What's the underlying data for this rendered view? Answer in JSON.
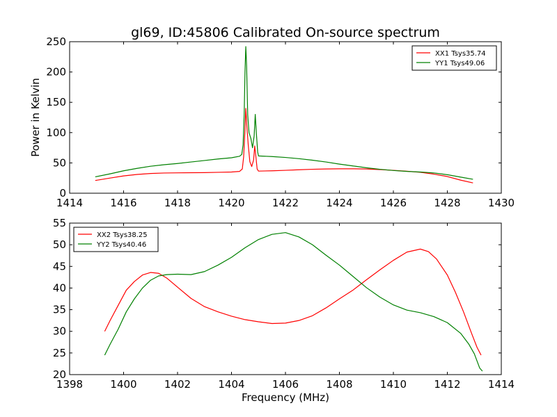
{
  "chart_data": [
    {
      "type": "line",
      "title": "gl69, ID:45806 Calibrated On-source spectrum",
      "xlabel": "",
      "ylabel": "Power in Kelvin",
      "xlim": [
        1414,
        1430
      ],
      "ylim": [
        0,
        250
      ],
      "xticks": [
        1414,
        1416,
        1418,
        1420,
        1422,
        1424,
        1426,
        1428,
        1430
      ],
      "yticks": [
        0,
        50,
        100,
        150,
        200,
        250
      ],
      "grid": false,
      "legend": "top-right",
      "series": [
        {
          "name": "XX1 Tsys35.74",
          "color": "#ff0000",
          "points": [
            [
              1414.95,
              21
            ],
            [
              1415.5,
              25
            ],
            [
              1416.0,
              28.5
            ],
            [
              1416.5,
              31
            ],
            [
              1417.0,
              32.5
            ],
            [
              1417.5,
              33.3
            ],
            [
              1418.0,
              33.6
            ],
            [
              1418.5,
              33.8
            ],
            [
              1419.0,
              34
            ],
            [
              1419.5,
              34.5
            ],
            [
              1420.0,
              35
            ],
            [
              1420.3,
              36
            ],
            [
              1420.4,
              40
            ],
            [
              1420.45,
              60
            ],
            [
              1420.5,
              105
            ],
            [
              1420.53,
              140
            ],
            [
              1420.57,
              110
            ],
            [
              1420.62,
              80
            ],
            [
              1420.68,
              52
            ],
            [
              1420.75,
              44
            ],
            [
              1420.82,
              55
            ],
            [
              1420.86,
              78
            ],
            [
              1420.9,
              62
            ],
            [
              1420.95,
              40
            ],
            [
              1421.0,
              36.5
            ],
            [
              1421.5,
              37
            ],
            [
              1422.0,
              37.8
            ],
            [
              1422.5,
              38.7
            ],
            [
              1423.0,
              39.5
            ],
            [
              1423.5,
              40
            ],
            [
              1424.0,
              40.3
            ],
            [
              1424.5,
              40.3
            ],
            [
              1425.0,
              40
            ],
            [
              1425.5,
              39
            ],
            [
              1426.0,
              37.8
            ],
            [
              1426.5,
              36.3
            ],
            [
              1427.0,
              34.5
            ],
            [
              1427.5,
              31.5
            ],
            [
              1428.0,
              27.5
            ],
            [
              1428.5,
              21.5
            ],
            [
              1428.95,
              17
            ]
          ]
        },
        {
          "name": "YY1 Tsys49.06",
          "color": "#008000",
          "points": [
            [
              1414.95,
              27
            ],
            [
              1415.5,
              32
            ],
            [
              1416.0,
              37
            ],
            [
              1416.5,
              41
            ],
            [
              1417.0,
              44.5
            ],
            [
              1417.5,
              47
            ],
            [
              1418.0,
              49
            ],
            [
              1418.5,
              51.5
            ],
            [
              1419.0,
              54
            ],
            [
              1419.5,
              56.5
            ],
            [
              1420.0,
              58.5
            ],
            [
              1420.3,
              61
            ],
            [
              1420.38,
              64
            ],
            [
              1420.43,
              80
            ],
            [
              1420.47,
              130
            ],
            [
              1420.5,
              200
            ],
            [
              1420.53,
              242
            ],
            [
              1420.56,
              210
            ],
            [
              1420.6,
              130
            ],
            [
              1420.65,
              100
            ],
            [
              1420.72,
              90
            ],
            [
              1420.78,
              75
            ],
            [
              1420.84,
              95
            ],
            [
              1420.88,
              130
            ],
            [
              1420.92,
              100
            ],
            [
              1420.97,
              68
            ],
            [
              1421.0,
              61.5
            ],
            [
              1421.5,
              60.5
            ],
            [
              1422.0,
              59
            ],
            [
              1422.5,
              57
            ],
            [
              1423.0,
              54.5
            ],
            [
              1423.5,
              51.5
            ],
            [
              1424.0,
              48
            ],
            [
              1424.5,
              45
            ],
            [
              1425.0,
              42
            ],
            [
              1425.5,
              39.5
            ],
            [
              1426.0,
              37.5
            ],
            [
              1426.5,
              36
            ],
            [
              1427.0,
              35
            ],
            [
              1427.5,
              33.5
            ],
            [
              1428.0,
              30.5
            ],
            [
              1428.5,
              26.5
            ],
            [
              1428.95,
              23
            ]
          ]
        }
      ]
    },
    {
      "type": "line",
      "title": "",
      "xlabel": "Frequency (MHz)",
      "ylabel": "",
      "xlim": [
        1398,
        1414
      ],
      "ylim": [
        20,
        55
      ],
      "xticks": [
        1398,
        1400,
        1402,
        1404,
        1406,
        1408,
        1410,
        1412,
        1414
      ],
      "yticks": [
        20,
        25,
        30,
        35,
        40,
        45,
        50,
        55
      ],
      "grid": false,
      "legend": "top-left",
      "series": [
        {
          "name": "XX2 Tsys38.25",
          "color": "#ff0000",
          "points": [
            [
              1399.3,
              30
            ],
            [
              1399.5,
              32.5
            ],
            [
              1399.8,
              36
            ],
            [
              1400.1,
              39.5
            ],
            [
              1400.4,
              41.5
            ],
            [
              1400.7,
              43
            ],
            [
              1401.0,
              43.6
            ],
            [
              1401.3,
              43.4
            ],
            [
              1401.6,
              42.3
            ],
            [
              1402.0,
              40.2
            ],
            [
              1402.5,
              37.6
            ],
            [
              1403.0,
              35.7
            ],
            [
              1403.5,
              34.5
            ],
            [
              1404.0,
              33.5
            ],
            [
              1404.5,
              32.7
            ],
            [
              1405.0,
              32.2
            ],
            [
              1405.5,
              31.8
            ],
            [
              1406.0,
              31.9
            ],
            [
              1406.5,
              32.5
            ],
            [
              1407.0,
              33.6
            ],
            [
              1407.5,
              35.4
            ],
            [
              1408.0,
              37.5
            ],
            [
              1408.5,
              39.5
            ],
            [
              1409.0,
              41.9
            ],
            [
              1409.5,
              44.2
            ],
            [
              1410.0,
              46.4
            ],
            [
              1410.5,
              48.3
            ],
            [
              1411.0,
              49
            ],
            [
              1411.3,
              48.4
            ],
            [
              1411.6,
              46.7
            ],
            [
              1412.0,
              43
            ],
            [
              1412.3,
              39
            ],
            [
              1412.6,
              34.5
            ],
            [
              1412.9,
              29.5
            ],
            [
              1413.1,
              26.3
            ],
            [
              1413.25,
              24.5
            ]
          ]
        },
        {
          "name": "YY2 Tsys40.46",
          "color": "#008000",
          "points": [
            [
              1399.3,
              24.5
            ],
            [
              1399.5,
              27
            ],
            [
              1399.8,
              30.5
            ],
            [
              1400.1,
              34.5
            ],
            [
              1400.4,
              37.5
            ],
            [
              1400.7,
              40
            ],
            [
              1401.0,
              41.8
            ],
            [
              1401.3,
              42.8
            ],
            [
              1401.6,
              43.1
            ],
            [
              1402.0,
              43.2
            ],
            [
              1402.5,
              43.1
            ],
            [
              1403.0,
              43.8
            ],
            [
              1403.5,
              45.3
            ],
            [
              1404.0,
              47.1
            ],
            [
              1404.5,
              49.3
            ],
            [
              1405.0,
              51.2
            ],
            [
              1405.5,
              52.4
            ],
            [
              1406.0,
              52.8
            ],
            [
              1406.5,
              51.8
            ],
            [
              1407.0,
              50
            ],
            [
              1407.5,
              47.6
            ],
            [
              1408.0,
              45.3
            ],
            [
              1408.5,
              42.7
            ],
            [
              1409.0,
              40.1
            ],
            [
              1409.5,
              37.9
            ],
            [
              1410.0,
              36.1
            ],
            [
              1410.5,
              34.9
            ],
            [
              1411.0,
              34.3
            ],
            [
              1411.5,
              33.4
            ],
            [
              1412.0,
              32
            ],
            [
              1412.5,
              29.5
            ],
            [
              1412.8,
              27
            ],
            [
              1413.0,
              24.8
            ],
            [
              1413.2,
              21.5
            ],
            [
              1413.3,
              20.8
            ]
          ]
        }
      ]
    }
  ]
}
